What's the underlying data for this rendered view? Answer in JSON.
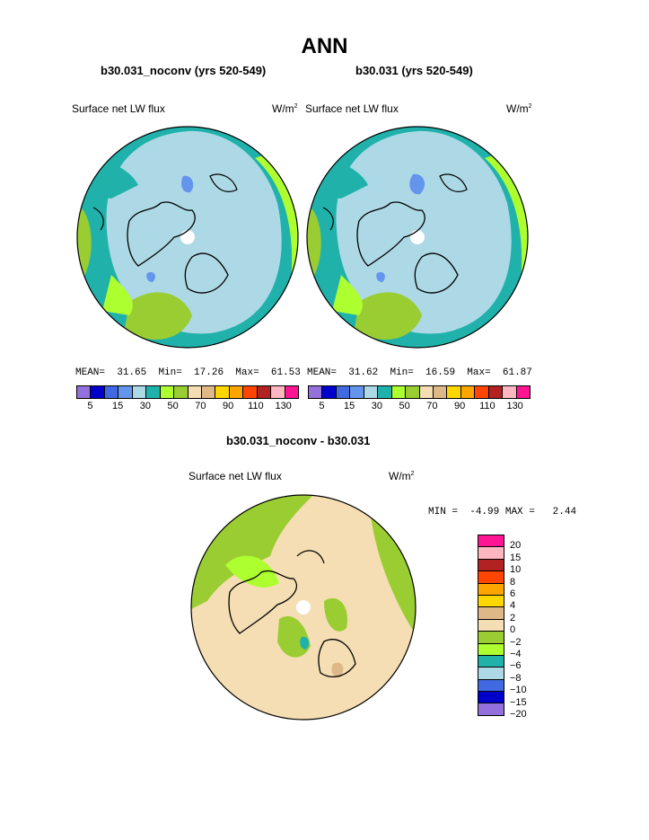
{
  "page": {
    "title": "ANN",
    "left_panel_title": "b30.031_noconv (yrs 520-549)",
    "right_panel_title": "b30.031 (yrs 520-549)",
    "diff_title": "b30.031_noconv - b30.031"
  },
  "left_map": {
    "variable": "Surface net LW flux",
    "units_base": "W/m",
    "units_exp": "2",
    "stats": {
      "mean_label": "MEAN=",
      "mean": "31.65",
      "min_label": "Min=",
      "min": "17.26",
      "max_label": "Max=",
      "max": "61.53"
    }
  },
  "right_map": {
    "variable": "Surface net LW flux",
    "units_base": "W/m",
    "units_exp": "2",
    "stats": {
      "mean_label": "MEAN=",
      "mean": "31.62",
      "min_label": "Min=",
      "min": "16.59",
      "max_label": "Max=",
      "max": "61.87"
    }
  },
  "diff_map": {
    "variable": "Surface net LW flux",
    "units_base": "W/m",
    "units_exp": "2",
    "stats": {
      "min_label": "MIN =",
      "min": "-4.99",
      "max_label": "MAX =",
      "max": "2.44"
    }
  },
  "colorbar_main": {
    "colors": [
      "#9370db",
      "#0000cd",
      "#4169e1",
      "#6495ed",
      "#add8e6",
      "#20b2aa",
      "#adff2f",
      "#9acd32",
      "#f5deb3",
      "#deb887",
      "#ffd700",
      "#ffa500",
      "#ff4500",
      "#b22222",
      "#ffb6c1",
      "#ff1493"
    ],
    "tick_labels": [
      "5",
      "15",
      "30",
      "50",
      "70",
      "90",
      "110",
      "130"
    ]
  },
  "colorbar_diff": {
    "colors": [
      "#ff1493",
      "#ffb6c1",
      "#b22222",
      "#ff4500",
      "#ffa500",
      "#ffd700",
      "#deb887",
      "#f5deb3",
      "#9acd32",
      "#adff2f",
      "#20b2aa",
      "#add8e6",
      "#4169e1",
      "#0000cd",
      "#9370db"
    ],
    "tick_labels": [
      "20",
      "15",
      "10",
      "8",
      "6",
      "4",
      "2",
      "0",
      "−2",
      "−4",
      "−6",
      "−8",
      "−10",
      "−15",
      "−20"
    ]
  }
}
